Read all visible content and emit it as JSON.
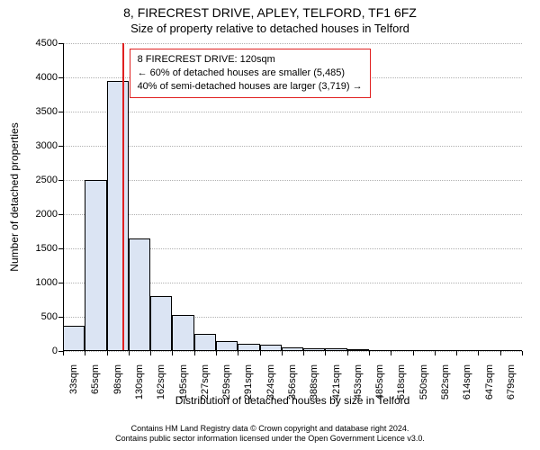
{
  "title_line1": "8, FIRECREST DRIVE, APLEY, TELFORD, TF1 6FZ",
  "title_line2": "Size of property relative to detached houses in Telford",
  "y_axis_label": "Number of detached properties",
  "x_axis_label": "Distribution of detached houses by size in Telford",
  "footer_line1": "Contains HM Land Registry data © Crown copyright and database right 2024.",
  "footer_line2": "Contains public sector information licensed under the Open Government Licence v3.0.",
  "chart": {
    "type": "histogram",
    "background_color": "#ffffff",
    "grid_color": "#b0b0b0",
    "axis_color": "#000000",
    "bar_fill": "#dbe4f3",
    "bar_stroke": "#000000",
    "marker_color": "#e02020",
    "annotation_border": "#e02020",
    "ylim": [
      0,
      4500
    ],
    "y_ticks": [
      0,
      500,
      1000,
      1500,
      2000,
      2500,
      3000,
      3500,
      4000,
      4500
    ],
    "x_categories": [
      "33sqm",
      "65sqm",
      "98sqm",
      "130sqm",
      "162sqm",
      "195sqm",
      "227sqm",
      "259sqm",
      "291sqm",
      "324sqm",
      "356sqm",
      "388sqm",
      "421sqm",
      "453sqm",
      "485sqm",
      "518sqm",
      "550sqm",
      "582sqm",
      "614sqm",
      "647sqm",
      "679sqm"
    ],
    "values": [
      375,
      2500,
      3950,
      1650,
      800,
      520,
      250,
      150,
      100,
      90,
      50,
      45,
      40,
      15,
      0,
      0,
      0,
      0,
      0,
      0,
      0
    ],
    "bar_width_ratio": 1.0,
    "marker_position_index": 2.7,
    "annotation": {
      "line1": "8 FIRECREST DRIVE: 120sqm",
      "line2": "← 60% of detached houses are smaller (5,485)",
      "line3": "40% of semi-detached houses are larger (3,719) →"
    },
    "title_fontsize": 14,
    "subtitle_fontsize": 13,
    "axis_label_fontsize": 12,
    "tick_fontsize": 11,
    "annotation_fontsize": 11,
    "footer_fontsize": 9
  }
}
